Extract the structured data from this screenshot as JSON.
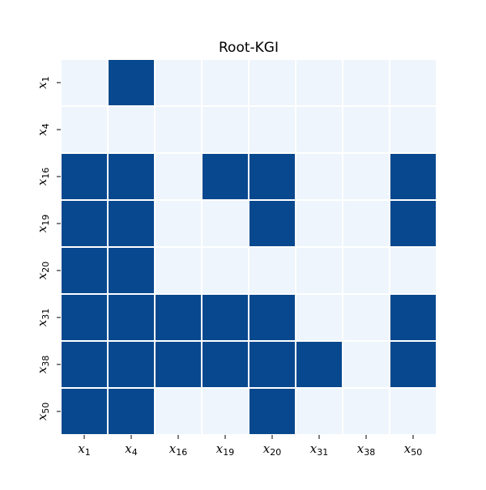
{
  "chart_data": {
    "type": "heatmap",
    "title": "Root-KGI",
    "x_labels": [
      {
        "base": "x",
        "sub": "1"
      },
      {
        "base": "x",
        "sub": "4"
      },
      {
        "base": "x",
        "sub": "16"
      },
      {
        "base": "x",
        "sub": "19"
      },
      {
        "base": "x",
        "sub": "20"
      },
      {
        "base": "x",
        "sub": "31"
      },
      {
        "base": "x",
        "sub": "38"
      },
      {
        "base": "x",
        "sub": "50"
      }
    ],
    "y_labels": [
      {
        "base": "x",
        "sub": "1"
      },
      {
        "base": "x",
        "sub": "4"
      },
      {
        "base": "x",
        "sub": "16"
      },
      {
        "base": "x",
        "sub": "19"
      },
      {
        "base": "x",
        "sub": "20"
      },
      {
        "base": "x",
        "sub": "31"
      },
      {
        "base": "x",
        "sub": "38"
      },
      {
        "base": "x",
        "sub": "50"
      }
    ],
    "matrix": [
      [
        0,
        1,
        0,
        0,
        0,
        0,
        0,
        0
      ],
      [
        0,
        0,
        0,
        0,
        0,
        0,
        0,
        0
      ],
      [
        1,
        1,
        0,
        1,
        1,
        0,
        0,
        1
      ],
      [
        1,
        1,
        0,
        0,
        1,
        0,
        0,
        1
      ],
      [
        1,
        1,
        0,
        0,
        0,
        0,
        0,
        0
      ],
      [
        1,
        1,
        1,
        1,
        1,
        0,
        0,
        1
      ],
      [
        1,
        1,
        1,
        1,
        1,
        1,
        0,
        1
      ],
      [
        1,
        1,
        0,
        0,
        1,
        0,
        0,
        0
      ]
    ],
    "colors": {
      "on": "#08488e",
      "off": "#eef5fc"
    },
    "grid": false,
    "legend": "none"
  }
}
